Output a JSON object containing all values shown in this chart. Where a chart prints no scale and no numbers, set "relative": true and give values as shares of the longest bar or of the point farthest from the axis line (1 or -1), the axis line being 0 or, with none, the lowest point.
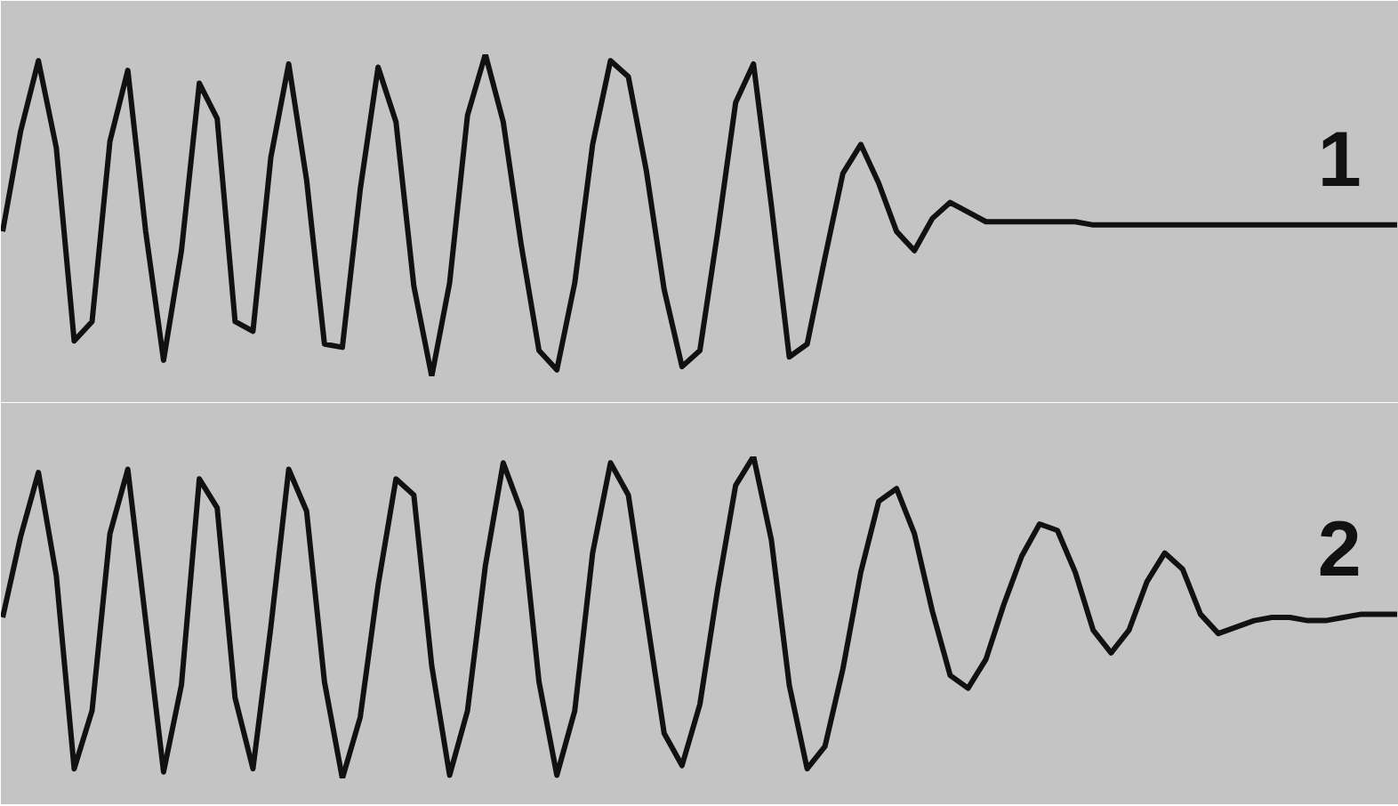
{
  "chart_data": [
    {
      "type": "line",
      "relative": true,
      "tick_labels": false,
      "grid": false,
      "line_style": "solid",
      "categories": [
        null,
        null,
        null,
        null,
        null,
        null,
        null,
        null,
        null,
        null,
        null,
        null,
        null,
        null,
        null,
        null,
        null,
        null,
        null,
        null,
        null,
        null,
        null,
        null,
        null,
        null,
        null,
        null,
        null,
        null,
        null,
        null,
        null,
        null,
        null,
        null,
        null,
        null,
        null,
        null,
        null,
        null,
        null,
        null,
        null,
        null,
        null,
        null,
        null,
        null,
        null,
        null,
        null,
        null,
        null,
        null,
        null,
        null,
        null,
        null,
        null,
        null,
        null,
        null,
        null,
        null,
        null,
        null,
        null,
        null,
        null,
        null,
        null,
        null,
        null,
        null,
        null,
        null,
        null
      ],
      "series": [
        {
          "name": "1",
          "color": "#111111",
          "values": [
            0.45,
            0.76,
            0.98,
            0.71,
            0.11,
            0.17,
            0.73,
            0.95,
            0.45,
            0.05,
            0.39,
            0.91,
            0.8,
            0.17,
            0.14,
            0.68,
            0.97,
            0.61,
            0.1,
            0.09,
            0.58,
            0.96,
            0.79,
            0.28,
            0,
            0.29,
            0.81,
            1,
            0.79,
            0.41,
            0.08,
            0.02,
            0.29,
            0.72,
            0.98,
            0.93,
            0.64,
            0.27,
            0.03,
            0.08,
            0.45,
            0.85,
            0.97,
            0.53,
            0.06,
            0.1,
            0.37,
            0.63,
            0.72,
            0.6,
            0.45,
            0.39,
            0.49,
            0.54,
            0.51,
            0.48,
            0.48,
            0.48,
            0.48,
            0.48,
            0.48,
            0.47,
            0.47,
            0.47,
            0.47,
            0.47,
            0.47,
            0.47,
            0.47,
            0.47,
            0.47,
            0.47,
            0.47,
            0.47,
            0.47,
            0.47,
            0.47,
            0.47,
            0.47
          ]
        }
      ]
    },
    {
      "type": "line",
      "relative": true,
      "tick_labels": false,
      "grid": false,
      "line_style": "solid",
      "categories": [
        null,
        null,
        null,
        null,
        null,
        null,
        null,
        null,
        null,
        null,
        null,
        null,
        null,
        null,
        null,
        null,
        null,
        null,
        null,
        null,
        null,
        null,
        null,
        null,
        null,
        null,
        null,
        null,
        null,
        null,
        null,
        null,
        null,
        null,
        null,
        null,
        null,
        null,
        null,
        null,
        null,
        null,
        null,
        null,
        null,
        null,
        null,
        null,
        null,
        null,
        null,
        null,
        null,
        null,
        null,
        null,
        null,
        null,
        null,
        null,
        null,
        null,
        null,
        null,
        null,
        null,
        null,
        null,
        null,
        null,
        null,
        null,
        null,
        null,
        null,
        null,
        null,
        null,
        null
      ],
      "series": [
        {
          "name": "2",
          "color": "#111111",
          "values": [
            0.5,
            0.75,
            0.95,
            0.63,
            0.03,
            0.21,
            0.76,
            0.96,
            0.49,
            0.02,
            0.29,
            0.93,
            0.84,
            0.25,
            0.03,
            0.47,
            0.96,
            0.83,
            0.3,
            0,
            0.19,
            0.6,
            0.93,
            0.88,
            0.35,
            0.01,
            0.21,
            0.66,
            0.98,
            0.83,
            0.3,
            0.01,
            0.21,
            0.7,
            0.98,
            0.88,
            0.51,
            0.14,
            0.04,
            0.23,
            0.59,
            0.91,
            1,
            0.74,
            0.29,
            0.03,
            0.1,
            0.34,
            0.64,
            0.86,
            0.9,
            0.76,
            0.52,
            0.32,
            0.28,
            0.37,
            0.54,
            0.69,
            0.79,
            0.77,
            0.64,
            0.46,
            0.39,
            0.46,
            0.61,
            0.7,
            0.65,
            0.51,
            0.45,
            0.47,
            0.49,
            0.5,
            0.5,
            0.49,
            0.49,
            0.5,
            0.51,
            0.51,
            0.51
          ]
        }
      ]
    }
  ]
}
